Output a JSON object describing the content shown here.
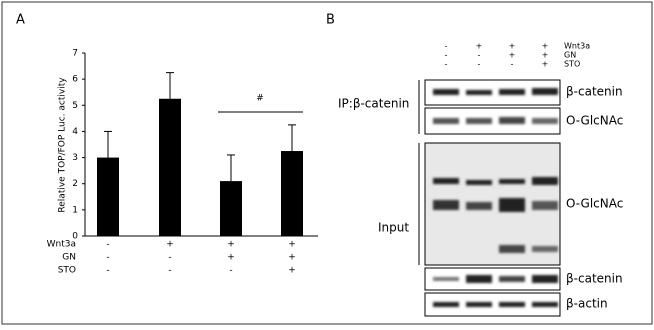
{
  "chart_data": {
    "type": "bar",
    "panel_label": "A",
    "y_label": "Relative TOP/FOP Luc. activity",
    "categories": [
      null,
      null,
      null,
      null
    ],
    "values": [
      3.0,
      5.25,
      2.1,
      3.25
    ],
    "errors": [
      1.0,
      1.0,
      1.0,
      1.0
    ],
    "color": "#000000",
    "ylim": [
      0,
      7
    ],
    "yticks": [
      0,
      1,
      2,
      3,
      4,
      5,
      6,
      7
    ],
    "grid": false,
    "annotation": "#",
    "conditions": [
      {
        "name": "Wnt3a",
        "signs": [
          "-",
          "+",
          "+",
          "+"
        ]
      },
      {
        "name": "GN",
        "signs": [
          "-",
          "-",
          "+",
          "+"
        ]
      },
      {
        "name": "STO",
        "signs": [
          "-",
          "-",
          "-",
          "+"
        ]
      }
    ]
  },
  "panel_b": {
    "panel_label": "B",
    "conditions": [
      {
        "name": "Wnt3a",
        "signs": [
          "-",
          "+",
          "+",
          "+"
        ]
      },
      {
        "name": "GN",
        "signs": [
          "-",
          "-",
          "+",
          "+"
        ]
      },
      {
        "name": "STO",
        "signs": [
          "-",
          "-",
          "-",
          "+"
        ]
      }
    ],
    "group_labels": [
      "IP:β-catenin",
      "Input"
    ],
    "blot_labels": [
      "β-catenin",
      "O-GlcNAc",
      "O-GlcNAc",
      "β-catenin",
      "β-actin"
    ]
  }
}
